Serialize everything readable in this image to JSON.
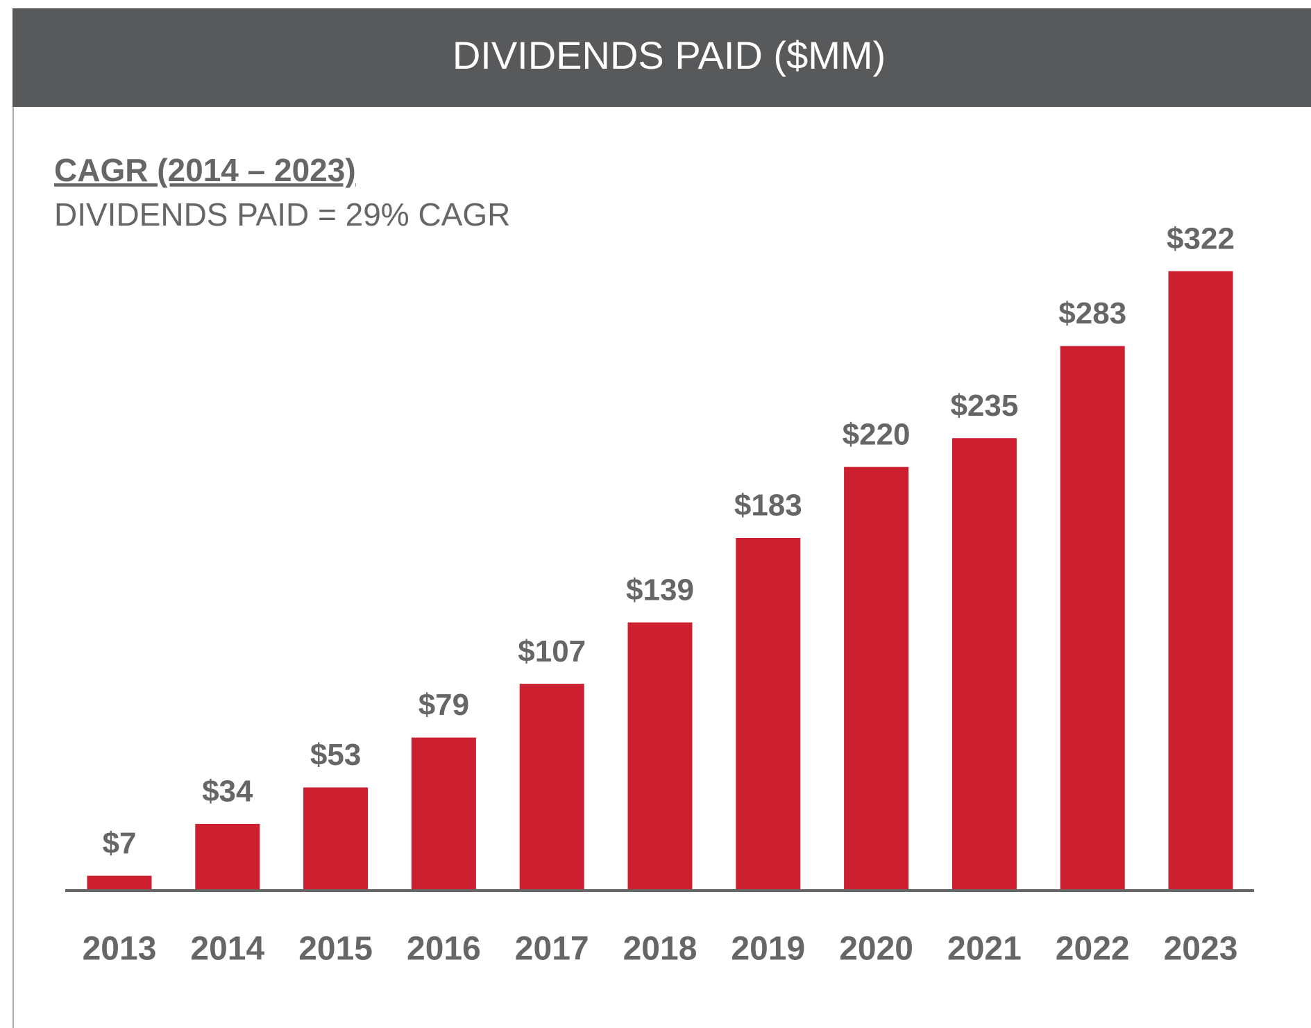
{
  "chart_data": {
    "type": "bar",
    "title": "DIVIDENDS PAID ($MM)",
    "subtitle": "CAGR (2014 – 2023)",
    "annotation": "DIVIDENDS PAID = 29% CAGR",
    "categories": [
      "2013",
      "2014",
      "2015",
      "2016",
      "2017",
      "2018",
      "2019",
      "2020",
      "2021",
      "2022",
      "2023"
    ],
    "values": [
      7,
      34,
      53,
      79,
      107,
      139,
      183,
      220,
      235,
      283,
      322
    ],
    "value_labels": [
      "$7",
      "$34",
      "$53",
      "$79",
      "$107",
      "$139",
      "$183",
      "$220",
      "$235",
      "$283",
      "$322"
    ],
    "color": "#cc1f2f"
  }
}
